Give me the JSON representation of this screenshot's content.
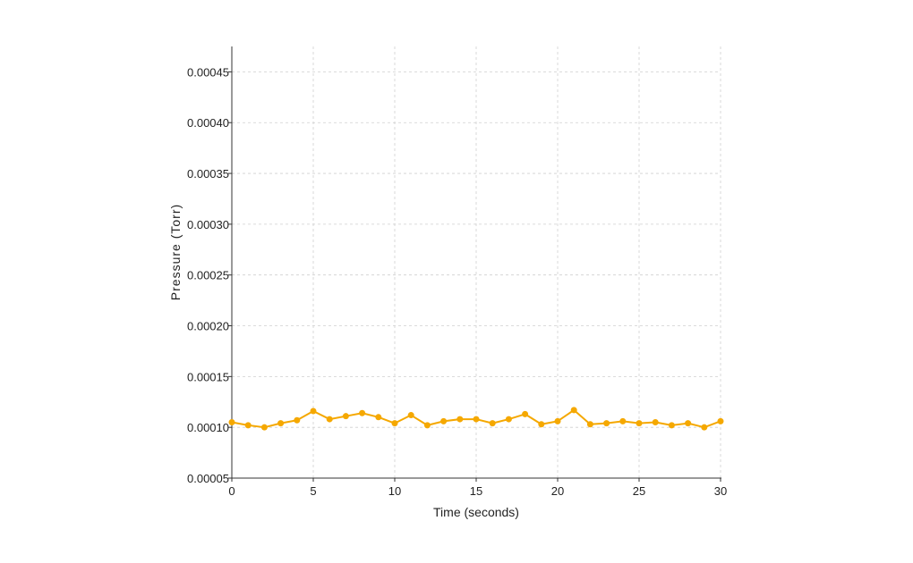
{
  "chart_data": {
    "type": "line",
    "title": "",
    "xlabel": "Time (seconds)",
    "ylabel": "Pressure (Torr)",
    "xlim": [
      0,
      30
    ],
    "ylim": [
      5e-05,
      0.000475
    ],
    "xticks": [
      0,
      5,
      10,
      15,
      20,
      25,
      30
    ],
    "xtick_labels": [
      "0",
      "5",
      "10",
      "15",
      "20",
      "25",
      "30"
    ],
    "yticks": [
      5e-05,
      0.0001,
      0.00015,
      0.0002,
      0.00025,
      0.0003,
      0.00035,
      0.0004,
      0.00045
    ],
    "ytick_labels": [
      "0.00005",
      "0.00010",
      "0.00015",
      "0.00020",
      "0.00025",
      "0.00030",
      "0.00035",
      "0.00040",
      "0.00045"
    ],
    "grid": true,
    "series": [
      {
        "color": "#f5a800",
        "x": [
          0,
          1,
          2,
          3,
          4,
          5,
          6,
          7,
          8,
          9,
          10,
          11,
          12,
          13,
          14,
          15,
          16,
          17,
          18,
          19,
          20,
          21,
          22,
          23,
          24,
          25,
          26,
          27,
          28,
          29,
          30
        ],
        "values": [
          0.000105,
          0.000102,
          0.0001,
          0.000104,
          0.000107,
          0.000116,
          0.000108,
          0.000111,
          0.000114,
          0.00011,
          0.000104,
          0.000112,
          0.000102,
          0.000106,
          0.000108,
          0.000108,
          0.000104,
          0.000108,
          0.000113,
          0.000103,
          0.000106,
          0.000117,
          0.000103,
          0.000104,
          0.000106,
          0.000104,
          0.000105,
          0.000102,
          0.000104,
          0.0001,
          0.000106
        ]
      }
    ]
  }
}
